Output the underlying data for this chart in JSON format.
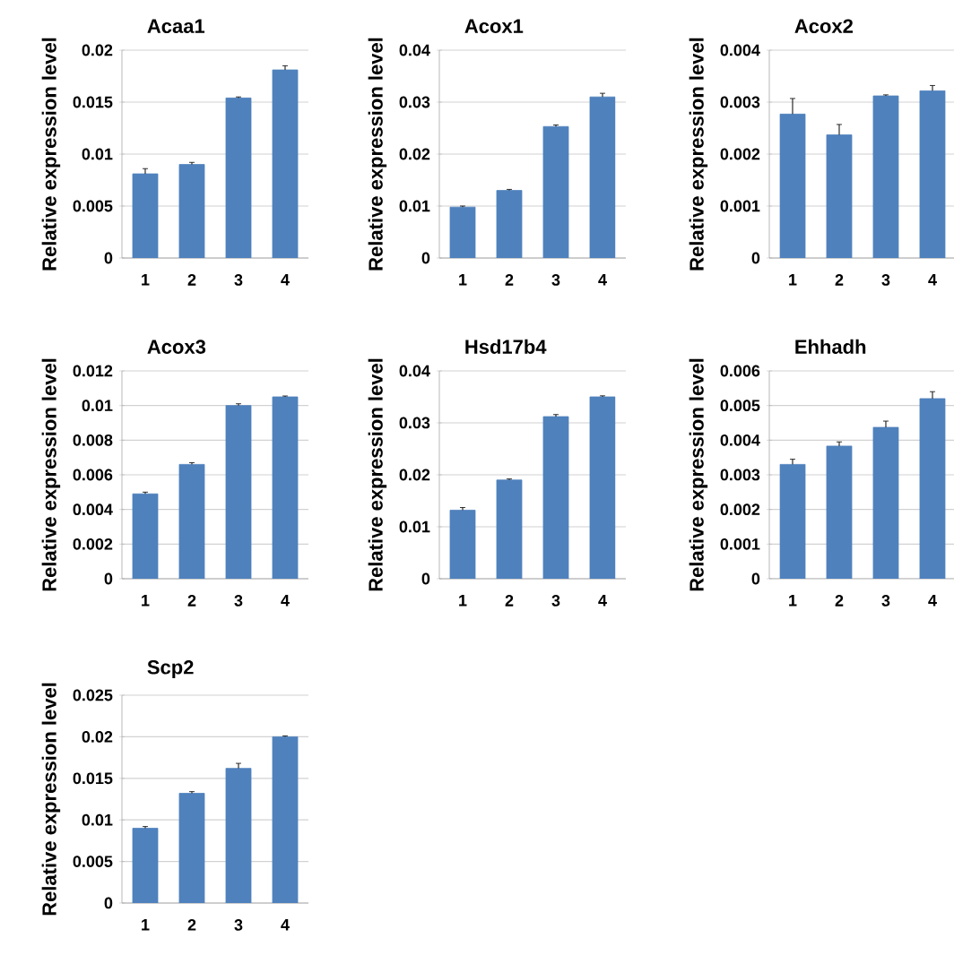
{
  "chart_data": [
    {
      "type": "bar",
      "title": "Acaa1",
      "ylabel": "Relative expression level",
      "categories": [
        "1",
        "2",
        "3",
        "4"
      ],
      "values": [
        0.0081,
        0.009,
        0.0154,
        0.0181
      ],
      "errors": [
        0.0005,
        0.0002,
        0.0001,
        0.0004
      ],
      "color": "#4f81bd",
      "ylim": [
        0,
        0.02
      ],
      "yticks": [
        0,
        0.005,
        0.01,
        0.015,
        0.02
      ],
      "grid": "y"
    },
    {
      "type": "bar",
      "title": "Acox1",
      "ylabel": "Relative expression level",
      "categories": [
        "1",
        "2",
        "3",
        "4"
      ],
      "values": [
        0.0098,
        0.013,
        0.0253,
        0.031
      ],
      "errors": [
        0.0002,
        0.0002,
        0.0003,
        0.0007
      ],
      "color": "#4f81bd",
      "ylim": [
        0,
        0.04
      ],
      "yticks": [
        0,
        0.01,
        0.02,
        0.03,
        0.04
      ],
      "grid": "y"
    },
    {
      "type": "bar",
      "title": "Acox2",
      "ylabel": "Relative expression level",
      "categories": [
        "1",
        "2",
        "3",
        "4"
      ],
      "values": [
        0.00277,
        0.00237,
        0.00312,
        0.00322
      ],
      "errors": [
        0.0003,
        0.0002,
        2e-05,
        0.0001
      ],
      "color": "#4f81bd",
      "ylim": [
        0,
        0.004
      ],
      "yticks": [
        0,
        0.001,
        0.002,
        0.003,
        0.004
      ],
      "grid": "y"
    },
    {
      "type": "bar",
      "title": "Acox3",
      "ylabel": "Relative expression level",
      "categories": [
        "1",
        "2",
        "3",
        "4"
      ],
      "values": [
        0.0049,
        0.0066,
        0.01,
        0.0105
      ],
      "errors": [
        0.0001,
        0.0001,
        0.0001,
        5e-05
      ],
      "color": "#4f81bd",
      "ylim": [
        0,
        0.012
      ],
      "yticks": [
        0,
        0.002,
        0.004,
        0.006,
        0.008,
        0.01,
        0.012
      ],
      "grid": "y"
    },
    {
      "type": "bar",
      "title": "Hsd17b4",
      "ylabel": "Relative expression level",
      "categories": [
        "1",
        "2",
        "3",
        "4"
      ],
      "values": [
        0.0132,
        0.019,
        0.0312,
        0.035
      ],
      "errors": [
        0.0005,
        0.0002,
        0.0004,
        0.0002
      ],
      "color": "#4f81bd",
      "ylim": [
        0,
        0.04
      ],
      "yticks": [
        0,
        0.01,
        0.02,
        0.03,
        0.04
      ],
      "grid": "y"
    },
    {
      "type": "bar",
      "title": "Ehhadh",
      "ylabel": "Relative expression level",
      "categories": [
        "1",
        "2",
        "3",
        "4"
      ],
      "values": [
        0.0033,
        0.00383,
        0.00437,
        0.0052
      ],
      "errors": [
        0.00015,
        0.00012,
        0.00018,
        0.0002
      ],
      "color": "#4f81bd",
      "ylim": [
        0,
        0.006
      ],
      "yticks": [
        0,
        0.001,
        0.002,
        0.003,
        0.004,
        0.005,
        0.006
      ],
      "grid": "y"
    },
    {
      "type": "bar",
      "title": "Scp2",
      "ylabel": "Relative expression level",
      "categories": [
        "1",
        "2",
        "3",
        "4"
      ],
      "values": [
        0.009,
        0.0132,
        0.0162,
        0.02
      ],
      "errors": [
        0.0002,
        0.0002,
        0.0006,
        0.0001
      ],
      "color": "#4f81bd",
      "ylim": [
        0,
        0.025
      ],
      "yticks": [
        0,
        0.005,
        0.01,
        0.015,
        0.02,
        0.025
      ],
      "grid": "y"
    }
  ]
}
